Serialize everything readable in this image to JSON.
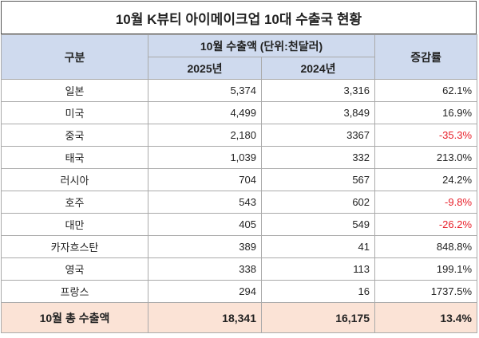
{
  "title": "10월 K뷰티 아이메이크업 10대 수출국 현황",
  "header": {
    "category": "구분",
    "group": "10월 수출액 (단위:천달러)",
    "years": [
      "2025년",
      "2024년"
    ],
    "change": "증감률"
  },
  "rows": [
    [
      "일본",
      "5,374",
      "3,316",
      "62.1%"
    ],
    [
      "미국",
      "4,499",
      "3,849",
      "16.9%"
    ],
    [
      "중국",
      "2,180",
      "3367",
      "-35.3%"
    ],
    [
      "태국",
      "1,039",
      "332",
      "213.0%"
    ],
    [
      "러시아",
      "704",
      "567",
      "24.2%"
    ],
    [
      "호주",
      "543",
      "602",
      "-9.8%"
    ],
    [
      "대만",
      "405",
      "549",
      "-26.2%"
    ],
    [
      "카자흐스탄",
      "389",
      "41",
      "848.8%"
    ],
    [
      "영국",
      "338",
      "113",
      "199.1%"
    ],
    [
      "프랑스",
      "294",
      "16",
      "1737.5%"
    ]
  ],
  "total": [
    "10월 총 수출액",
    "18,341",
    "16,175",
    "13.4%"
  ]
}
